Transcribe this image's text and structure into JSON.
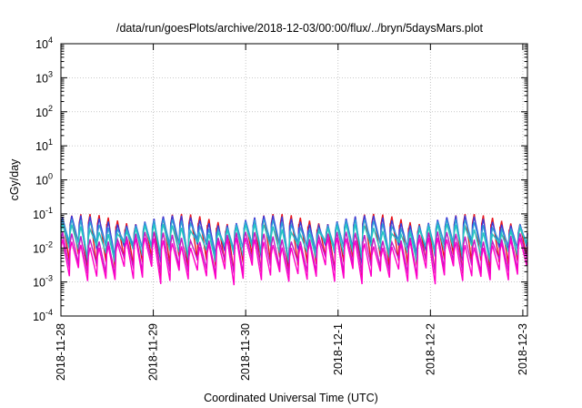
{
  "chart_data": {
    "type": "line",
    "title": "/data/run/goesPlots/archive/2018-12-03/00:00/flux/../bryn/5daysMars.plot",
    "xlabel": "Coordinated Universal Time (UTC)",
    "ylabel": "cGy/day",
    "yscale": "log",
    "ylim": [
      0.0001,
      10000
    ],
    "y_ticks": [
      {
        "base": "10",
        "exp": "-4"
      },
      {
        "base": "10",
        "exp": "-3"
      },
      {
        "base": "10",
        "exp": "-2"
      },
      {
        "base": "10",
        "exp": "-1"
      },
      {
        "base": "10",
        "exp": "0"
      },
      {
        "base": "10",
        "exp": "1"
      },
      {
        "base": "10",
        "exp": "2"
      },
      {
        "base": "10",
        "exp": "3"
      },
      {
        "base": "10",
        "exp": "4"
      }
    ],
    "x_ticks": [
      "2018-11-28",
      "2018-11-29",
      "2018-11-30",
      "2018-12-1",
      "2018-12-2",
      "2018-12-3"
    ],
    "xlim_days": [
      0,
      5.05
    ],
    "grid": true,
    "pattern": {
      "cycles_per_day": 10,
      "comment_free_shape": "sawtooth"
    },
    "series": [
      {
        "color": "#e8141c",
        "peak": 0.1,
        "trough": 0.004
      },
      {
        "color": "#3a3ad8",
        "peak": 0.09,
        "trough": 0.01
      },
      {
        "color": "#2f9fd8",
        "peak": 0.07,
        "trough": 0.012
      },
      {
        "color": "#23c8c0",
        "peak": 0.05,
        "trough": 0.009
      },
      {
        "color": "#c41ac4",
        "peak": 0.03,
        "trough": 0.003
      },
      {
        "color": "#ff00c8",
        "peak": 0.02,
        "trough": 0.0018
      }
    ]
  }
}
